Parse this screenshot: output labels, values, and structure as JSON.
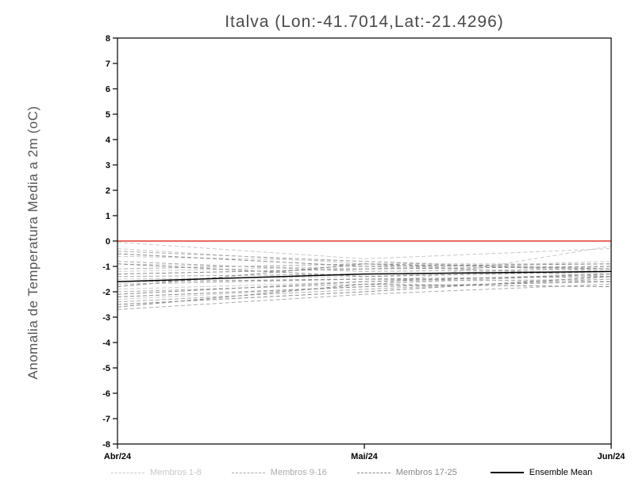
{
  "chart_data": {
    "type": "line",
    "title": "Italva (Lon:-41.7014,Lat:-21.4296)",
    "xlabel": "",
    "ylabel": "Anomalia de Temperatura Media a 2m (oC)",
    "x_tick_labels": [
      "Abr/24",
      "Mai/24",
      "Jun/24"
    ],
    "ylim": [
      -8,
      8
    ],
    "ytick_step": 1,
    "grid": false,
    "legend_position": "bottom",
    "zero_line": {
      "color": "#e0382e",
      "values": [
        0,
        0,
        0
      ]
    },
    "groups": [
      {
        "name": "Membros 1-8",
        "color": "#c9c9c9",
        "style": "dashed",
        "members": [
          [
            -0.05,
            -0.7,
            -0.3
          ],
          [
            -0.3,
            -0.9,
            -0.9
          ],
          [
            -0.6,
            -0.8,
            -1.1
          ],
          [
            -0.9,
            -1.1,
            -0.8
          ],
          [
            -1.2,
            -1.0,
            -1.3
          ],
          [
            -1.5,
            -1.4,
            -1.0
          ],
          [
            -1.9,
            -1.6,
            -1.5
          ],
          [
            -2.3,
            -1.8,
            -0.2
          ]
        ]
      },
      {
        "name": "Membros 9-16",
        "color": "#ababab",
        "style": "dashed",
        "members": [
          [
            -0.4,
            -0.8,
            -1.2
          ],
          [
            -0.8,
            -1.2,
            -1.1
          ],
          [
            -1.1,
            -0.9,
            -1.4
          ],
          [
            -1.4,
            -1.3,
            -1.2
          ],
          [
            -1.7,
            -1.5,
            -1.6
          ],
          [
            -2.0,
            -1.7,
            -1.3
          ],
          [
            -2.4,
            -1.9,
            -1.5
          ],
          [
            -2.7,
            -2.1,
            -1.7
          ]
        ]
      },
      {
        "name": "Membros 17-25",
        "color": "#8a8a8a",
        "style": "dashed",
        "members": [
          [
            -0.5,
            -1.0,
            -0.9
          ],
          [
            -0.9,
            -1.4,
            -1.2
          ],
          [
            -1.3,
            -1.1,
            -1.0
          ],
          [
            -1.6,
            -1.5,
            -1.4
          ],
          [
            -1.8,
            -0.9,
            -1.1
          ],
          [
            -2.1,
            -1.6,
            -1.3
          ],
          [
            -2.2,
            -1.8,
            -1.6
          ],
          [
            -2.5,
            -2.0,
            -1.4
          ],
          [
            -2.6,
            -1.7,
            -1.8
          ]
        ]
      }
    ],
    "mean": {
      "name": "Ensemble Mean",
      "color": "#000000",
      "style": "solid",
      "values": [
        -1.6,
        -1.3,
        -1.2
      ]
    },
    "legend": [
      "Membros 1-8",
      "Membros 9-16",
      "Membros 17-25",
      "Ensemble Mean"
    ]
  }
}
